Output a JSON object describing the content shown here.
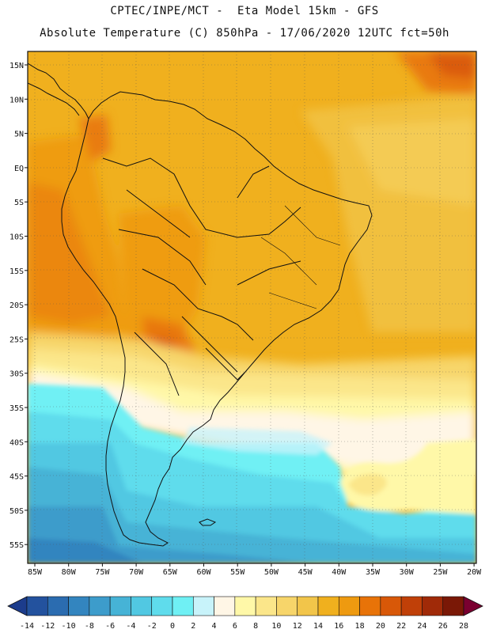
{
  "header": {
    "line1": "CPTEC/INPE/MCT -  Eta Model 15km - GFS",
    "line2": "Absolute Temperature (C) 850hPa - 17/06/2020 12UTC fct=50h"
  },
  "map": {
    "lon_labels": [
      "85W",
      "80W",
      "75W",
      "70W",
      "65W",
      "60W",
      "55W",
      "50W",
      "45W",
      "40W",
      "35W",
      "30W",
      "25W",
      "20W"
    ],
    "lat_labels": [
      "15N",
      "10N",
      "5N",
      "EQ",
      "5S",
      "10S",
      "15S",
      "20S",
      "25S",
      "30S",
      "35S",
      "40S",
      "45S",
      "50S",
      "55S"
    ]
  },
  "colorbar": {
    "ticks": [
      "-14",
      "-12",
      "-10",
      "-8",
      "-6",
      "-4",
      "-2",
      "0",
      "2",
      "4",
      "6",
      "8",
      "10",
      "12",
      "14",
      "16",
      "18",
      "20",
      "22",
      "24",
      "26",
      "28"
    ],
    "colors": [
      "#1c3c8c",
      "#23529e",
      "#2b6cb0",
      "#3385bf",
      "#3d9ccb",
      "#46b3d6",
      "#51c8e2",
      "#5fdcec",
      "#6ff0f4",
      "#c8f3fa",
      "#fff6e6",
      "#fff8a8",
      "#fbe68a",
      "#f7d56a",
      "#f2c54a",
      "#f0b01e",
      "#ee9a10",
      "#e87308",
      "#d85808",
      "#c04008",
      "#a02a08",
      "#7a1806",
      "#7a0030"
    ]
  }
}
